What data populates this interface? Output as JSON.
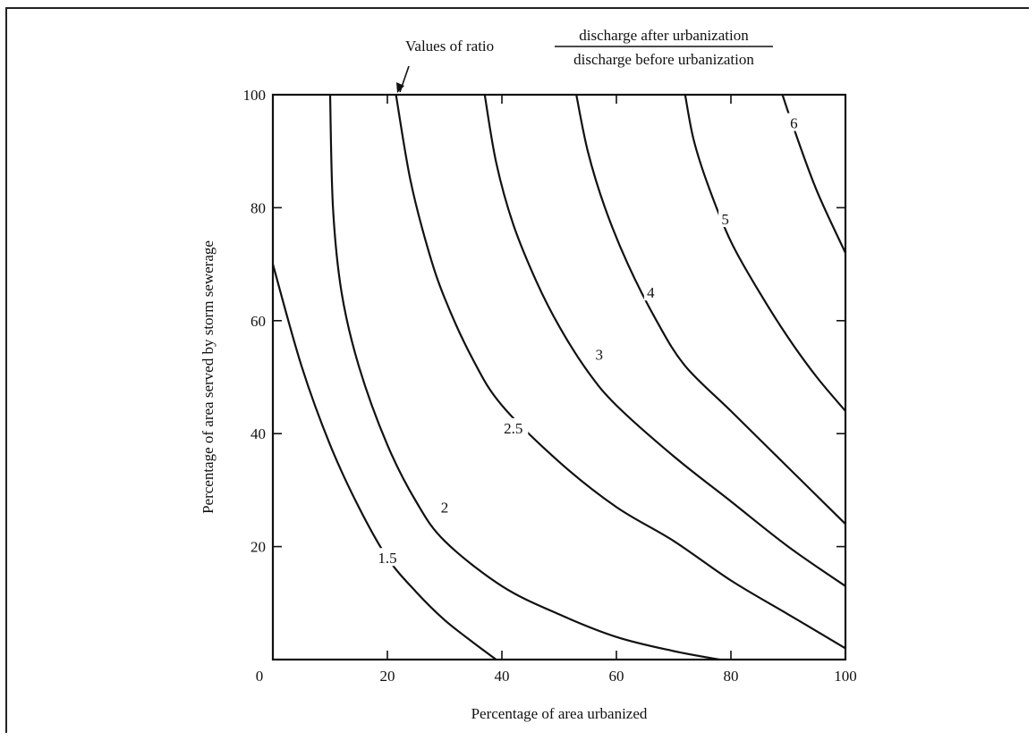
{
  "chart_data": {
    "type": "line",
    "title_prefix": "Values of ratio",
    "title_numerator": "discharge after urbanization",
    "title_denominator": "discharge before urbanization",
    "xlabel": "Percentage of area urbanized",
    "ylabel": "Percentage of area served by storm sewerage",
    "xlim": [
      0,
      100
    ],
    "ylim": [
      0,
      100
    ],
    "x_ticks": [
      "0",
      "20",
      "40",
      "60",
      "80",
      "100"
    ],
    "y_ticks": [
      "20",
      "40",
      "60",
      "80",
      "100"
    ],
    "grid": false,
    "series": [
      {
        "name": "1.5",
        "x": [
          0,
          5,
          10,
          15,
          20,
          25,
          30,
          35,
          39
        ],
        "y": [
          70,
          52,
          38,
          27,
          18,
          12,
          7,
          3,
          0
        ]
      },
      {
        "name": "",
        "x": [
          10,
          10.5,
          12,
          15,
          20,
          25,
          30,
          40,
          50,
          60,
          70,
          78
        ],
        "y": [
          100,
          80,
          65,
          52,
          38,
          28,
          21,
          13,
          8,
          4,
          1.5,
          0
        ]
      },
      {
        "name": "2",
        "x": [
          21.5,
          24,
          27,
          30,
          35,
          40,
          50,
          60,
          70,
          80,
          90,
          100
        ],
        "y": [
          100,
          85,
          73,
          64,
          53,
          45,
          35,
          27,
          21,
          14,
          8,
          2
        ]
      },
      {
        "name": "2.5",
        "x": [
          37,
          39,
          42,
          46,
          50,
          55,
          60,
          70,
          80,
          90,
          100
        ],
        "y": [
          100,
          88,
          77,
          67,
          59,
          51,
          45,
          36,
          28,
          20,
          13
        ]
      },
      {
        "name": "3",
        "x": [
          53,
          55,
          58,
          62,
          67,
          72,
          80,
          90,
          100
        ],
        "y": [
          100,
          90,
          80,
          70,
          60,
          52,
          44,
          34,
          24
        ]
      },
      {
        "name": "4",
        "x": [
          72,
          73.5,
          76,
          80,
          85,
          90,
          95,
          100
        ],
        "y": [
          100,
          92,
          84,
          74,
          65,
          57,
          50,
          44
        ]
      },
      {
        "name": "5",
        "x": [
          89,
          91,
          95,
          100
        ],
        "y": [
          100,
          94,
          83,
          72
        ]
      }
    ],
    "contour_labels": [
      {
        "text": "1.5",
        "x": 20,
        "y": 18
      },
      {
        "text": "2",
        "x": 30,
        "y": 27
      },
      {
        "text": "2.5",
        "x": 42,
        "y": 41
      },
      {
        "text": "3",
        "x": 57,
        "y": 54
      },
      {
        "text": "4",
        "x": 66,
        "y": 65
      },
      {
        "text": "5",
        "x": 79,
        "y": 78
      },
      {
        "text": "6",
        "x": 91,
        "y": 95
      }
    ]
  }
}
